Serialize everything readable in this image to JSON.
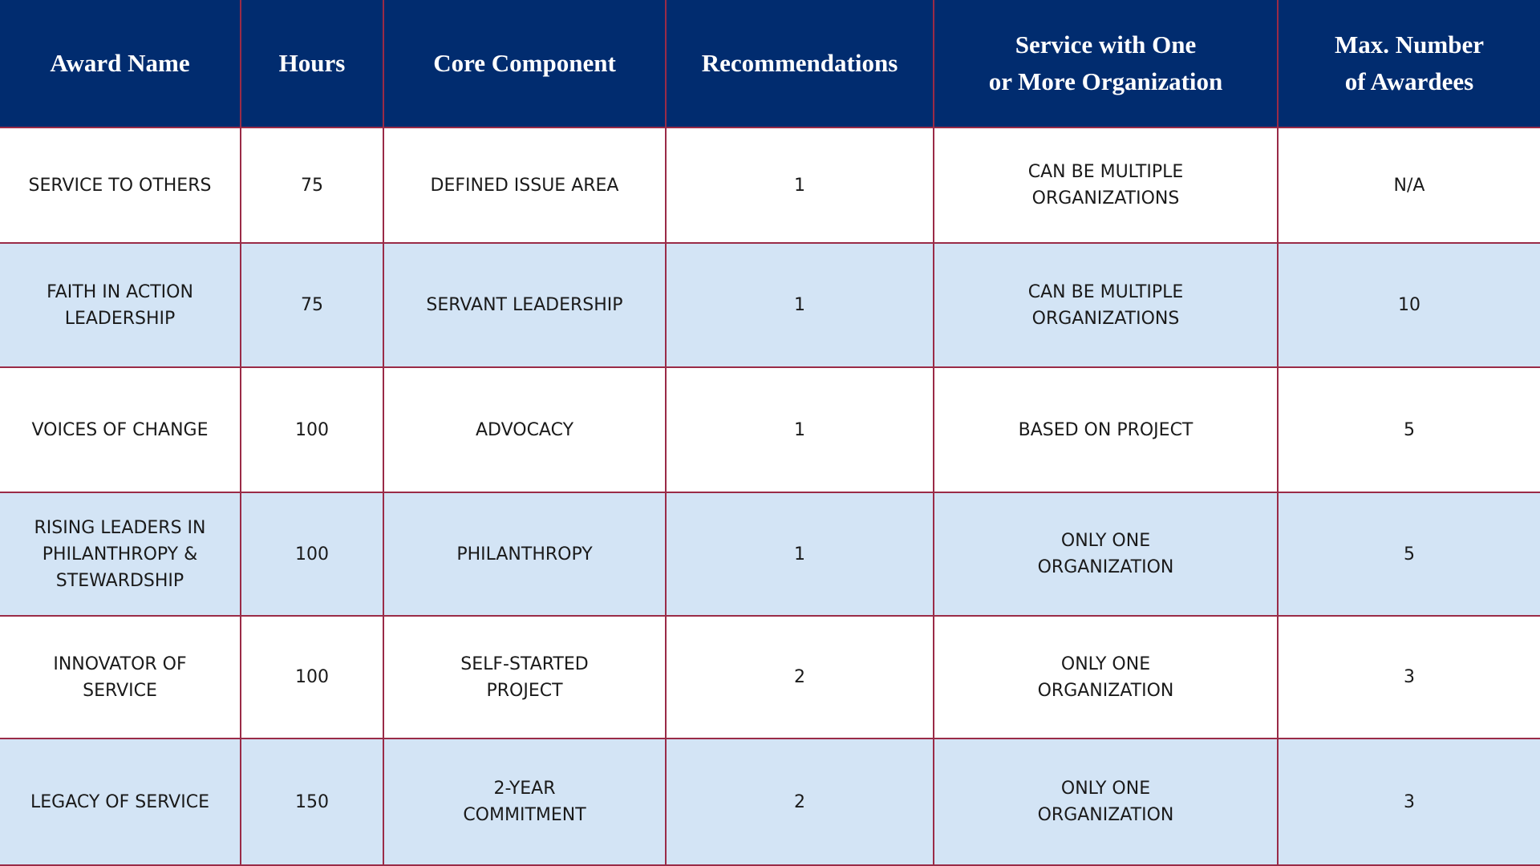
{
  "table": {
    "header": [
      [
        "Award Name"
      ],
      [
        "Hours"
      ],
      [
        "Core Component"
      ],
      [
        "Recommendations"
      ],
      [
        "Service with One",
        "or More Organization"
      ],
      [
        "Max. Number",
        "of Awardees"
      ]
    ],
    "rows": [
      [
        [
          "SERVICE TO OTHERS"
        ],
        [
          75
        ],
        [
          "DEFINED ISSUE AREA"
        ],
        [
          1
        ],
        [
          "CAN BE MULTIPLE",
          "ORGANIZATIONS"
        ],
        [
          "N/A"
        ]
      ],
      [
        [
          "FAITH IN ACTION",
          "LEADERSHIP"
        ],
        [
          75
        ],
        [
          "SERVANT LEADERSHIP"
        ],
        [
          1
        ],
        [
          "CAN BE MULTIPLE",
          "ORGANIZATIONS"
        ],
        [
          10
        ]
      ],
      [
        [
          "VOICES OF CHANGE"
        ],
        [
          100
        ],
        [
          "ADVOCACY"
        ],
        [
          1
        ],
        [
          "BASED ON PROJECT"
        ],
        [
          5
        ]
      ],
      [
        [
          "RISING LEADERS IN",
          "PHILANTHROPY &",
          "STEWARDSHIP"
        ],
        [
          100
        ],
        [
          "PHILANTHROPY"
        ],
        [
          1
        ],
        [
          "ONLY ONE",
          "ORGANIZATION"
        ],
        [
          5
        ]
      ],
      [
        [
          "INNOVATOR OF",
          "SERVICE"
        ],
        [
          100
        ],
        [
          "SELF-STARTED",
          "PROJECT"
        ],
        [
          2
        ],
        [
          "ONLY ONE",
          "ORGANIZATION"
        ],
        [
          3
        ]
      ],
      [
        [
          "LEGACY OF SERVICE"
        ],
        [
          150
        ],
        [
          "2-YEAR",
          "COMMITMENT"
        ],
        [
          2
        ],
        [
          "ONLY ONE",
          "ORGANIZATION"
        ],
        [
          3
        ]
      ]
    ]
  }
}
